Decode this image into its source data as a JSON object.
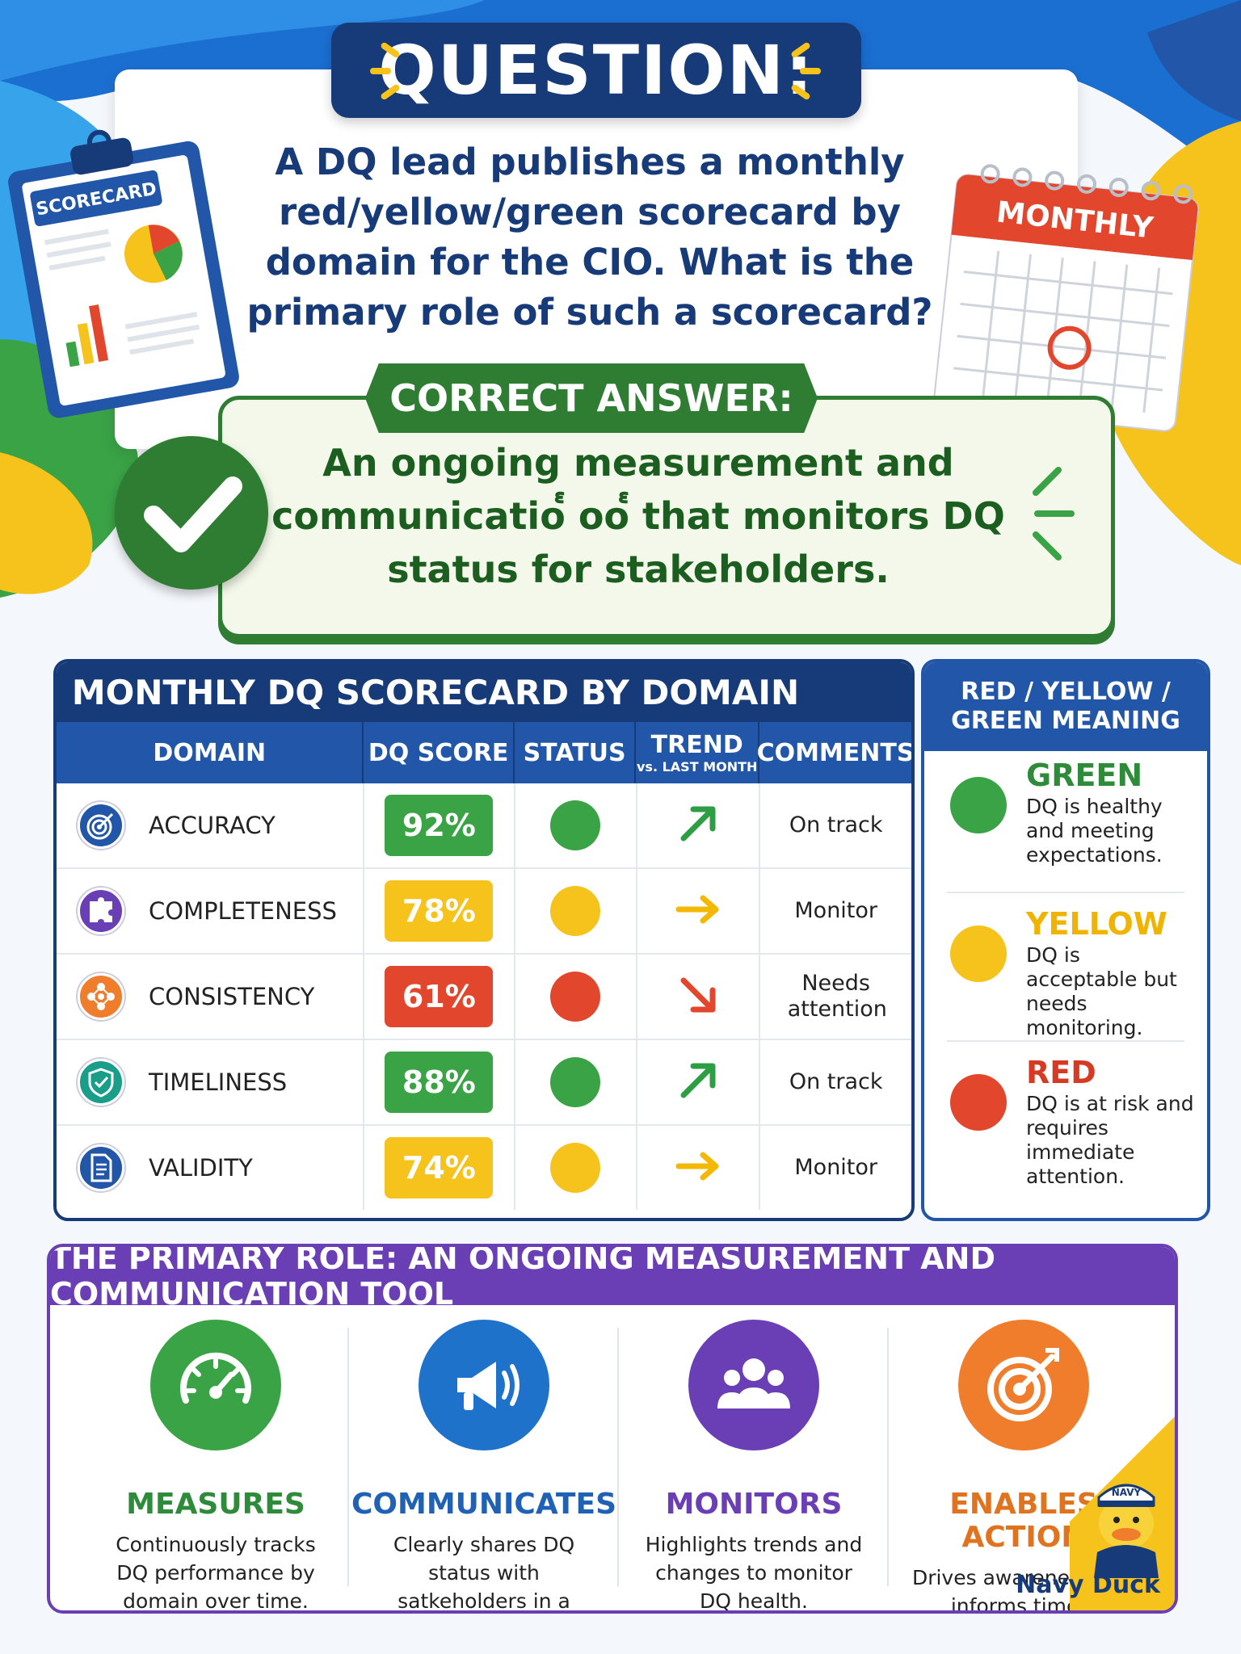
{
  "question": {
    "heading": "QUESTION:",
    "text": "A DQ lead publishes a monthly red/yellow/green scorecard by domain for the CIO. What is the primary role of such a scorecard?"
  },
  "decorations": {
    "clipboard_label": "SCORECARD",
    "calendar_label": "MONTHLY"
  },
  "answer": {
    "heading": "CORRECT ANSWER:",
    "text": "An ongoing measurement and communicatio๎ oo๎ that monitors DQ status for stakeholders."
  },
  "scorecard": {
    "title": "MONTHLY DQ SCORECARD BY DOMAIN",
    "headers": {
      "domain": "DOMAIN",
      "score": "DQ SCORE",
      "status": "STATUS",
      "trend": "TREND",
      "trend_sub": "vs. LAST MONTH",
      "comments": "COMMENTS"
    },
    "rows": [
      {
        "domain": "ACCURACY",
        "icon": "target-icon",
        "icon_color": "#2156a8",
        "score": "92%",
        "score_color": "#3aa346",
        "status": "green",
        "status_color": "#3aa346",
        "trend": "up",
        "trend_color": "#2e9e44",
        "comment": "On track"
      },
      {
        "domain": "COMPLETENESS",
        "icon": "puzzle-icon",
        "icon_color": "#6a3fb5",
        "score": "78%",
        "score_color": "#f5c31c",
        "status": "yellow",
        "status_color": "#f5c31c",
        "trend": "flat",
        "trend_color": "#f5b800",
        "comment": "Monitor"
      },
      {
        "domain": "CONSISTENCY",
        "icon": "network-icon",
        "icon_color": "#ef7d2c",
        "score": "61%",
        "score_color": "#e2462c",
        "status": "red",
        "status_color": "#e2462c",
        "trend": "down",
        "trend_color": "#e2462c",
        "comment": "Needs attention"
      },
      {
        "domain": "TIMELINESS",
        "icon": "shield-icon",
        "icon_color": "#1a9e8a",
        "score": "88%",
        "score_color": "#3aa346",
        "status": "green",
        "status_color": "#3aa346",
        "trend": "up",
        "trend_color": "#2e9e44",
        "comment": "On track"
      },
      {
        "domain": "VALIDITY",
        "icon": "document-icon",
        "icon_color": "#2156a8",
        "score": "74%",
        "score_color": "#f5c31c",
        "status": "yellow",
        "status_color": "#f5c31c",
        "trend": "flat",
        "trend_color": "#f5b800",
        "comment": "Monitor"
      }
    ]
  },
  "legend": {
    "title": "RED / YELLOW / GREEN MEANING",
    "items": [
      {
        "name": "GREEN",
        "color": "#3aa346",
        "text_color": "#2e8b3a",
        "desc": "DQ is healthy and meeting expectations."
      },
      {
        "name": "YELLOW",
        "color": "#f5c31c",
        "text_color": "#f0b400",
        "desc": "DQ is acceptable but needs monitoring."
      },
      {
        "name": "RED",
        "color": "#e2462c",
        "text_color": "#d63a22",
        "desc": "DQ is at risk and requires immediate attention."
      }
    ]
  },
  "roles": {
    "title": "THE PRIMARY ROLE: AN ONGOING MEASUREMENT AND COMMUNICATION TOOL",
    "items": [
      {
        "name": "MEASURES",
        "icon": "speedometer-icon",
        "color": "#3aa346",
        "name_color": "#2e8b3a",
        "desc": "Continuously tracks DQ performance by domain over time."
      },
      {
        "name": "COMMUNICATES",
        "icon": "megaphone-icon",
        "color": "#1f72c9",
        "name_color": "#1f62b5",
        "desc": "Clearly shares DQ status with satkeholders in a simple, visual way."
      },
      {
        "name": "MONITORS",
        "icon": "people-icon",
        "color": "#6a3fb5",
        "name_color": "#6a3fb5",
        "desc": "Highlights trends and changes to monitor DQ health."
      },
      {
        "name": "ENABLES ACTION",
        "icon": "target-icon",
        "color": "#ef7d2c",
        "name_color": "#e0731f",
        "desc": "Drives awareness and informs timely decisions to improve DQ."
      }
    ]
  },
  "brand": {
    "name": "Navy Duck",
    "hat_text": "NAVY"
  }
}
